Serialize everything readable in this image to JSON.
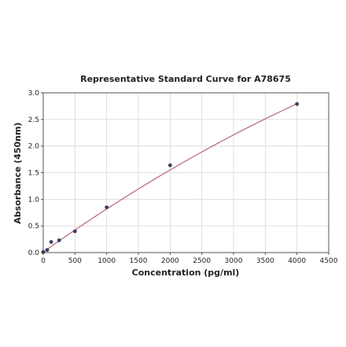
{
  "chart_data": {
    "type": "scatter",
    "title": "Representative Standard Curve for A78675",
    "xlabel": "Concentration (pg/ml)",
    "ylabel": "Absorbance (450nm)",
    "xlim": [
      0,
      4500
    ],
    "ylim": [
      0,
      3.0
    ],
    "x_ticks": [
      "0",
      "500",
      "1000",
      "1500",
      "2000",
      "2500",
      "3000",
      "3500",
      "4000",
      "4500"
    ],
    "y_ticks": [
      "0.0",
      "0.5",
      "1.0",
      "1.5",
      "2.0",
      "2.5",
      "3.0"
    ],
    "grid": true,
    "series": [
      {
        "x": [
          0,
          62.5,
          125,
          250,
          500,
          1000,
          2000,
          4000
        ],
        "y": [
          0.01,
          0.05,
          0.2,
          0.23,
          0.4,
          0.85,
          1.64,
          2.79
        ],
        "color": "#3d3d6b"
      }
    ],
    "fit_curve": {
      "type": "polynomial",
      "coefficients": [
        0.011,
        0.000845,
        -3.73e-08
      ],
      "color": "#b5586f"
    }
  }
}
